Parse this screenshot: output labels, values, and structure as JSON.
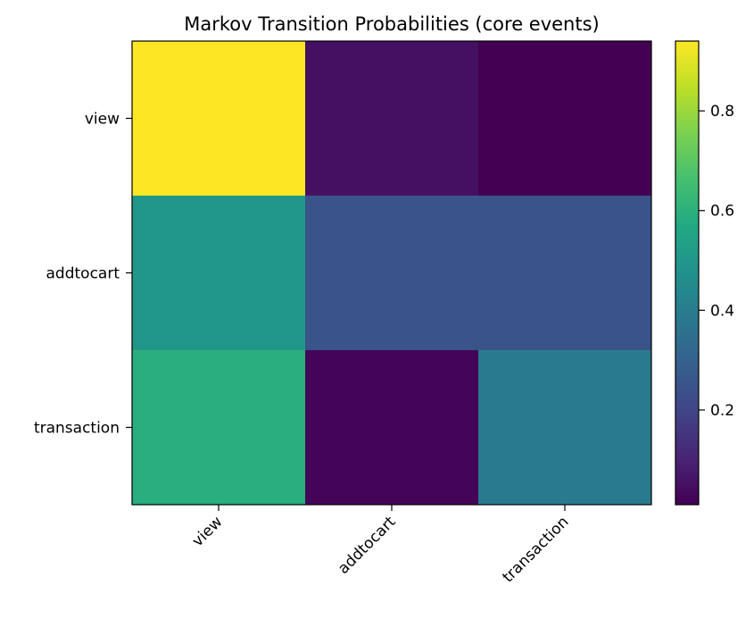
{
  "chart_data": {
    "type": "heatmap",
    "title": "Markov Transition Probabilities (core events)",
    "rows": [
      "view",
      "addtocart",
      "transaction"
    ],
    "columns": [
      "view",
      "addtocart",
      "transaction"
    ],
    "values": [
      [
        0.94,
        0.05,
        0.01
      ],
      [
        0.5,
        0.25,
        0.25
      ],
      [
        0.59,
        0.02,
        0.39
      ]
    ],
    "colormap": "viridis",
    "colorbar": {
      "min": 0.01,
      "max": 0.94,
      "ticks": [
        "0.2",
        "0.4",
        "0.6",
        "0.8"
      ]
    }
  }
}
